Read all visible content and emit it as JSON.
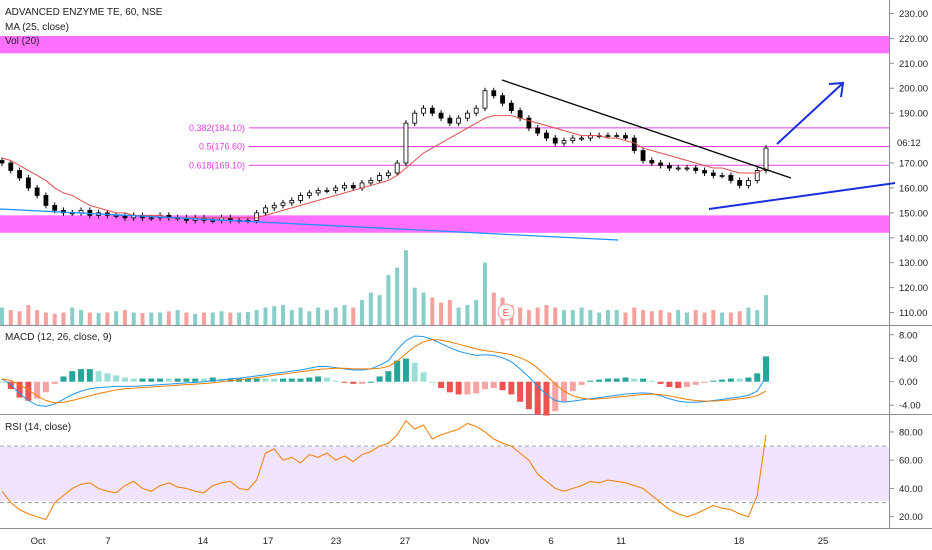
{
  "legend": {
    "title": "ADVANCED ENZYME TE, 60, NSE",
    "ma": "MA (25, close)",
    "vol": "Vol (20)",
    "macd": "MACD (12, 26, close, 9)",
    "rsi": "RSI (14, close)"
  },
  "time_badge": "06:12",
  "earnings_marker": "E",
  "colors": {
    "up": "#26a69a",
    "down": "#ef5350",
    "zone": "#ff40ff",
    "fib": "#e040e0",
    "trend_blue": "#1e90ff",
    "arrow": "#1a2ee0",
    "ma": "#e05050",
    "macd": "#2196f3",
    "signal": "#f57c00",
    "rsi": "#f57c00",
    "rsi_band": "#f1e4ff"
  },
  "chart_data": [
    {
      "type": "candlestick",
      "title": "ADVANCED ENZYME TE, 60, NSE",
      "y_ticks": [
        "230.00",
        "220.00",
        "210.00",
        "200.00",
        "190.00",
        "180.00",
        "170.00",
        "160.00",
        "150.00",
        "140.00",
        "130.00",
        "120.00",
        "110.00"
      ],
      "ylim": [
        105,
        233
      ],
      "x_ticks": [
        "Oct",
        "7",
        "14",
        "17",
        "23",
        "27",
        "Nov",
        "6",
        "11",
        "18",
        "25"
      ],
      "close_path": [
        170,
        167,
        164,
        160,
        157,
        153,
        151,
        150,
        150,
        151,
        149,
        150,
        149,
        149,
        148,
        149,
        148,
        148,
        149,
        148,
        148,
        147,
        148,
        147,
        147,
        148,
        147,
        147,
        147,
        150,
        152,
        153,
        154,
        155,
        157,
        158,
        159,
        159,
        160,
        161,
        160,
        162,
        163,
        165,
        166,
        170,
        186,
        190,
        192,
        190,
        188,
        186,
        188,
        190,
        192,
        199,
        197,
        194,
        191,
        188,
        184,
        182,
        180,
        178,
        179,
        180,
        180,
        181,
        181,
        181,
        181,
        180,
        175,
        171,
        170,
        169,
        168,
        168,
        168,
        167,
        166,
        165,
        165,
        163,
        161,
        163,
        167,
        176
      ],
      "ma_25": [
        172,
        171,
        169,
        167,
        165,
        163,
        160,
        158,
        157,
        155,
        153,
        152,
        151,
        150,
        150,
        149,
        149,
        149,
        149,
        148,
        148,
        148,
        148,
        148,
        148,
        148,
        148,
        148,
        148,
        148,
        149,
        150,
        151,
        152,
        153,
        154,
        155,
        156,
        157,
        158,
        159,
        160,
        161,
        162,
        163,
        165,
        168,
        171,
        174,
        176,
        178,
        180,
        182,
        184,
        186,
        188,
        189,
        189,
        189,
        188,
        187,
        186,
        185,
        184,
        183,
        182,
        181,
        181,
        181,
        180,
        180,
        179,
        178,
        176,
        175,
        174,
        173,
        172,
        171,
        170,
        169,
        168,
        168,
        167,
        166,
        166,
        166,
        168
      ],
      "volume": [
        112,
        111,
        110.5,
        113,
        111,
        110,
        109.5,
        110,
        112,
        111,
        110,
        109.8,
        110,
        110.5,
        111,
        110,
        109.8,
        110,
        110,
        110.5,
        111,
        110,
        109.5,
        110,
        110,
        110.5,
        110,
        110,
        110.2,
        111,
        112,
        112.5,
        113,
        111,
        112,
        110.5,
        112,
        111,
        112,
        113,
        112,
        115,
        118,
        117,
        125,
        128,
        135,
        120,
        118,
        116,
        114,
        115,
        112,
        113,
        115,
        130,
        118,
        116,
        113,
        112,
        111,
        112,
        113,
        112,
        111,
        111,
        112,
        111,
        110,
        111,
        111,
        110,
        112,
        111,
        110.5,
        111,
        110,
        111,
        110,
        111,
        110,
        111,
        110,
        110,
        110.5,
        112,
        111,
        117
      ],
      "annotations": [
        {
          "label": "0.382(184.10)",
          "value": 184.1
        },
        {
          "label": "0.5(176.60)",
          "value": 176.6
        },
        {
          "label": "0.618(169.10)",
          "value": 169.1
        }
      ],
      "zones": [
        {
          "from": 214,
          "to": 221
        },
        {
          "from": 142,
          "to": 149
        }
      ]
    },
    {
      "type": "line",
      "title": "MACD (12, 26, close, 9)",
      "y_ticks": [
        "8.00",
        "4.00",
        "0.00",
        "-4.00"
      ],
      "ylim": [
        -5.5,
        9.5
      ],
      "series": [
        {
          "values": [
            0.5,
            -0.5,
            -2.0,
            -3.2,
            -4.0,
            -4.2,
            -3.8,
            -3.0,
            -2.2,
            -1.6,
            -1.2,
            -1.0,
            -0.9,
            -0.8,
            -0.8,
            -0.8,
            -0.7,
            -0.6,
            -0.5,
            -0.4,
            -0.3,
            -0.2,
            -0.1,
            0,
            0.2,
            0.3,
            0.5,
            0.6,
            0.8,
            1.0,
            1.2,
            1.4,
            1.6,
            1.8,
            2.0,
            2.3,
            2.6,
            2.6,
            2.4,
            2.2,
            2.0,
            2.0,
            2.2,
            2.8,
            3.6,
            5.5,
            7.0,
            7.8,
            7.7,
            7.2,
            6.5,
            5.8,
            5.2,
            4.8,
            4.5,
            4.6,
            4.5,
            4.1,
            3.4,
            2.2,
            0.8,
            -0.8,
            -2.2,
            -3.2,
            -3.5,
            -3.3,
            -3.1,
            -2.9,
            -2.7,
            -2.5,
            -2.3,
            -2.1,
            -2.0,
            -1.9,
            -2.0,
            -2.4,
            -2.9,
            -3.3,
            -3.5,
            -3.5,
            -3.4,
            -3.2,
            -3.0,
            -2.8,
            -2.6,
            -2.3,
            -1.6,
            0.8
          ]
        },
        {
          "values": [
            0.5,
            0.2,
            -0.5,
            -1.4,
            -2.4,
            -3.2,
            -3.6,
            -3.5,
            -3.2,
            -2.8,
            -2.4,
            -2.0,
            -1.7,
            -1.4,
            -1.2,
            -1.1,
            -1.0,
            -0.9,
            -0.8,
            -0.7,
            -0.6,
            -0.5,
            -0.4,
            -0.3,
            -0.2,
            0,
            0.2,
            0.3,
            0.5,
            0.7,
            0.9,
            1.1,
            1.3,
            1.5,
            1.7,
            1.9,
            2.1,
            2.2,
            2.3,
            2.3,
            2.2,
            2.2,
            2.2,
            2.3,
            2.6,
            3.5,
            4.8,
            6.0,
            6.8,
            7.2,
            7.1,
            6.8,
            6.4,
            6.0,
            5.6,
            5.3,
            5.1,
            4.9,
            4.6,
            4.1,
            3.4,
            2.3,
            1.0,
            -0.4,
            -1.6,
            -2.4,
            -2.8,
            -3.0,
            -2.9,
            -2.8,
            -2.6,
            -2.5,
            -2.3,
            -2.2,
            -2.1,
            -2.2,
            -2.4,
            -2.7,
            -3.0,
            -3.2,
            -3.3,
            -3.3,
            -3.2,
            -3.1,
            -2.9,
            -2.7,
            -2.4,
            -1.6
          ]
        }
      ]
    },
    {
      "type": "line",
      "title": "RSI (14, close)",
      "y_ticks": [
        "80.00",
        "60.00",
        "40.00",
        "20.00"
      ],
      "ylim": [
        12,
        92
      ],
      "values": [
        38,
        30,
        25,
        22,
        20,
        18,
        30,
        35,
        40,
        43,
        44,
        40,
        38,
        37,
        42,
        45,
        40,
        38,
        42,
        44,
        41,
        40,
        38,
        37,
        42,
        44,
        45,
        40,
        39,
        46,
        65,
        68,
        60,
        62,
        58,
        64,
        62,
        65,
        60,
        63,
        59,
        64,
        66,
        70,
        72,
        78,
        88,
        82,
        85,
        75,
        78,
        80,
        82,
        86,
        84,
        80,
        75,
        72,
        70,
        65,
        60,
        50,
        45,
        40,
        38,
        40,
        42,
        45,
        44,
        46,
        45,
        44,
        42,
        40,
        35,
        30,
        25,
        22,
        20,
        22,
        25,
        28,
        26,
        25,
        22,
        20,
        35,
        78
      ],
      "bands": [
        30,
        70
      ]
    }
  ]
}
